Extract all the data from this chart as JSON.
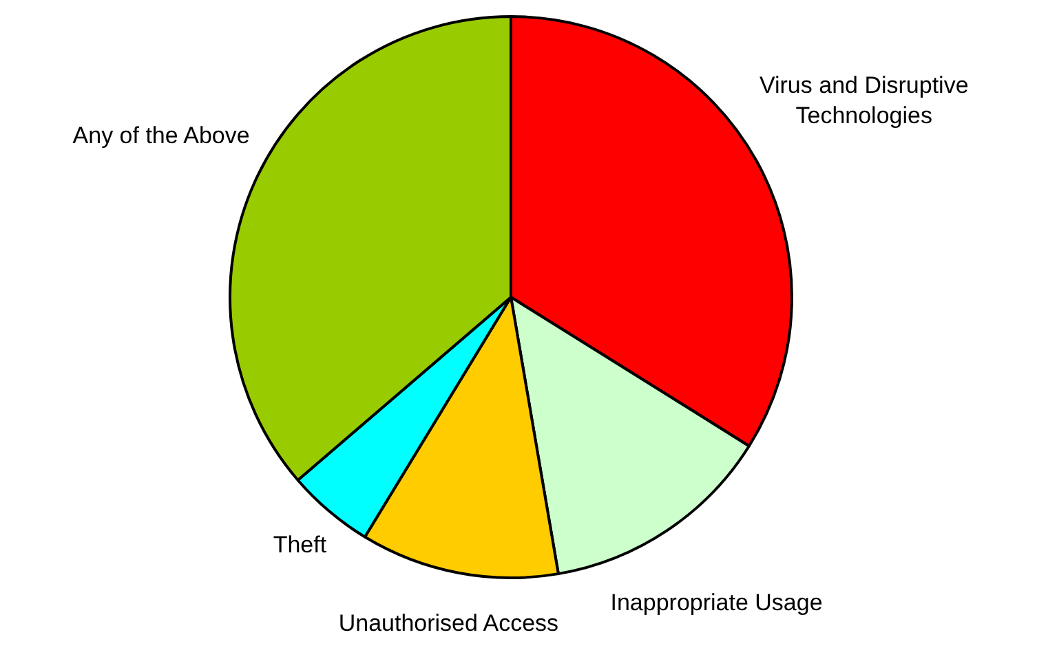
{
  "chart_data": {
    "type": "pie",
    "categories": [
      "Virus and Disruptive Technologies",
      "Inappropriate Usage",
      "Unauthorised Access",
      "Theft",
      "Any of the Above"
    ],
    "values": [
      33.9,
      13.4,
      11.4,
      5.0,
      36.3
    ],
    "colors": [
      "#ff0000",
      "#ccffcc",
      "#ffcc00",
      "#00ffff",
      "#99cc00"
    ],
    "legend": false
  }
}
